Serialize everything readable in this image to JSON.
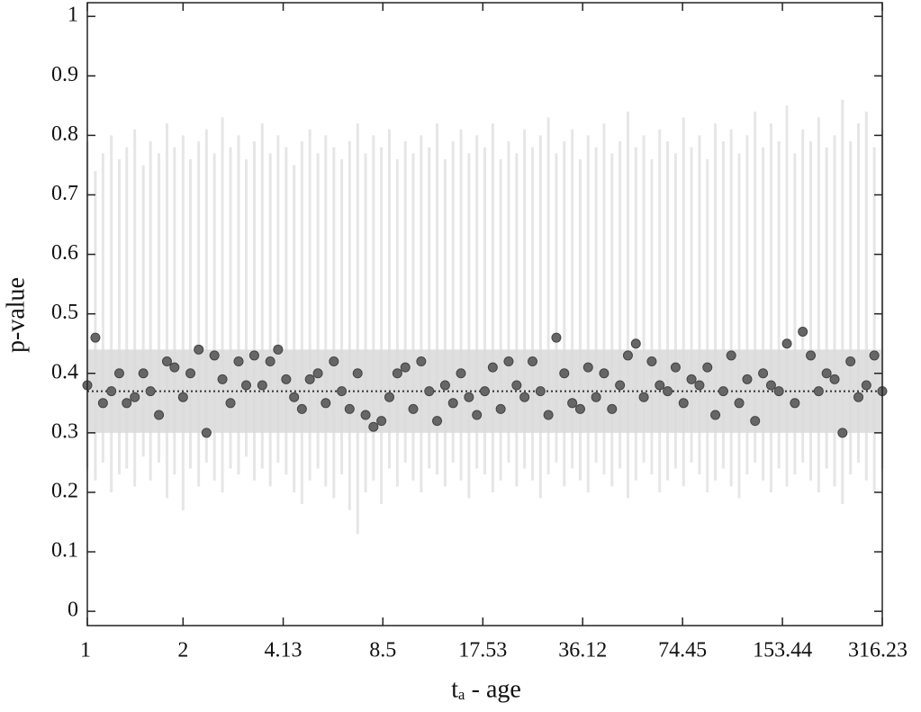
{
  "chart_data": {
    "type": "scatter",
    "x_label": "tₐ - age",
    "y_label": "p-value",
    "log_x": true,
    "xlim": [
      1,
      316.23
    ],
    "xticks": [
      1,
      2,
      4.13,
      8.5,
      17.53,
      36.12,
      74.45,
      153.44,
      316.23
    ],
    "ylim": [
      -0.024,
      1.023
    ],
    "yticks": [
      0,
      0.1,
      0.2,
      0.3,
      0.4,
      0.5,
      0.6,
      0.7,
      0.8,
      0.9,
      1
    ],
    "band": [
      0.3,
      0.44
    ],
    "band_color": "#d9d9d9",
    "mean_line": 0.37,
    "x": [
      1,
      1.06,
      1.12,
      1.19,
      1.26,
      1.33,
      1.41,
      1.5,
      1.58,
      1.68,
      1.78,
      1.88,
      2.0,
      2.11,
      2.24,
      2.37,
      2.51,
      2.66,
      2.82,
      2.99,
      3.16,
      3.35,
      3.55,
      3.76,
      3.98,
      4.22,
      4.47,
      4.73,
      5.01,
      5.31,
      5.62,
      5.96,
      6.31,
      6.68,
      7.08,
      7.5,
      7.94,
      8.41,
      8.91,
      9.44,
      10,
      10.59,
      11.22,
      11.89,
      12.59,
      13.34,
      14.13,
      14.96,
      15.85,
      16.79,
      17.78,
      18.84,
      19.95,
      21.13,
      22.39,
      23.71,
      25.12,
      26.61,
      28.18,
      29.85,
      31.62,
      33.5,
      35.48,
      37.58,
      39.81,
      42.17,
      44.67,
      47.32,
      50.12,
      53.09,
      56.23,
      59.57,
      63.1,
      66.83,
      70.79,
      74.99,
      79.43,
      84.14,
      89.13,
      94.41,
      100,
      105.9,
      112.2,
      118.9,
      125.9,
      133.4,
      141.3,
      149.6,
      158.5,
      167.9,
      177.8,
      188.4,
      199.5,
      211.3,
      223.9,
      237.1,
      251.2,
      266.1,
      281.8,
      298.5,
      316.2
    ],
    "series": [
      {
        "color": "#666666",
        "error_color": "#e6e6e6",
        "values": [
          0.38,
          0.46,
          0.35,
          0.37,
          0.4,
          0.35,
          0.36,
          0.4,
          0.37,
          0.33,
          0.42,
          0.41,
          0.36,
          0.4,
          0.44,
          0.3,
          0.43,
          0.39,
          0.35,
          0.42,
          0.38,
          0.43,
          0.38,
          0.42,
          0.44,
          0.39,
          0.36,
          0.34,
          0.39,
          0.4,
          0.35,
          0.42,
          0.37,
          0.34,
          0.4,
          0.33,
          0.31,
          0.32,
          0.36,
          0.4,
          0.41,
          0.34,
          0.42,
          0.37,
          0.32,
          0.38,
          0.35,
          0.4,
          0.36,
          0.33,
          0.37,
          0.41,
          0.34,
          0.42,
          0.38,
          0.36,
          0.42,
          0.37,
          0.33,
          0.46,
          0.4,
          0.35,
          0.34,
          0.41,
          0.36,
          0.4,
          0.34,
          0.38,
          0.43,
          0.45,
          0.36,
          0.42,
          0.38,
          0.37,
          0.41,
          0.35,
          0.39,
          0.38,
          0.41,
          0.33,
          0.37,
          0.43,
          0.35,
          0.39,
          0.32,
          0.4,
          0.38,
          0.37,
          0.45,
          0.35,
          0.47,
          0.43,
          0.37,
          0.4,
          0.39,
          0.3,
          0.42,
          0.36,
          0.38,
          0.43,
          0.37
        ],
        "lower": [
          0.24,
          0.22,
          0.25,
          0.2,
          0.23,
          0.24,
          0.21,
          0.26,
          0.22,
          0.25,
          0.19,
          0.23,
          0.17,
          0.24,
          0.21,
          0.25,
          0.22,
          0.2,
          0.24,
          0.23,
          0.26,
          0.22,
          0.24,
          0.21,
          0.25,
          0.23,
          0.2,
          0.18,
          0.22,
          0.24,
          0.21,
          0.19,
          0.23,
          0.17,
          0.13,
          0.2,
          0.22,
          0.18,
          0.24,
          0.21,
          0.25,
          0.22,
          0.2,
          0.24,
          0.23,
          0.21,
          0.25,
          0.22,
          0.19,
          0.24,
          0.23,
          0.2,
          0.22,
          0.25,
          0.21,
          0.24,
          0.22,
          0.19,
          0.23,
          0.25,
          0.21,
          0.24,
          0.22,
          0.2,
          0.25,
          0.23,
          0.21,
          0.24,
          0.19,
          0.22,
          0.25,
          0.23,
          0.2,
          0.22,
          0.24,
          0.21,
          0.25,
          0.23,
          0.2,
          0.22,
          0.24,
          0.21,
          0.19,
          0.23,
          0.25,
          0.22,
          0.2,
          0.24,
          0.21,
          0.23,
          0.25,
          0.22,
          0.2,
          0.24,
          0.21,
          0.18,
          0.23,
          0.25,
          0.22,
          0.2,
          0.24
        ],
        "upper": [
          0.79,
          0.74,
          0.77,
          0.8,
          0.76,
          0.78,
          0.81,
          0.75,
          0.79,
          0.77,
          0.82,
          0.78,
          0.8,
          0.76,
          0.79,
          0.81,
          0.77,
          0.83,
          0.78,
          0.8,
          0.76,
          0.79,
          0.82,
          0.77,
          0.8,
          0.78,
          0.75,
          0.79,
          0.81,
          0.77,
          0.8,
          0.78,
          0.76,
          0.79,
          0.82,
          0.77,
          0.8,
          0.78,
          0.81,
          0.76,
          0.79,
          0.77,
          0.8,
          0.78,
          0.82,
          0.76,
          0.79,
          0.81,
          0.77,
          0.8,
          0.78,
          0.82,
          0.76,
          0.79,
          0.77,
          0.81,
          0.78,
          0.8,
          0.83,
          0.77,
          0.79,
          0.81,
          0.76,
          0.8,
          0.78,
          0.82,
          0.77,
          0.79,
          0.84,
          0.78,
          0.8,
          0.76,
          0.81,
          0.79,
          0.77,
          0.83,
          0.78,
          0.8,
          0.76,
          0.82,
          0.79,
          0.81,
          0.77,
          0.8,
          0.84,
          0.78,
          0.82,
          0.79,
          0.85,
          0.77,
          0.81,
          0.79,
          0.83,
          0.78,
          0.8,
          0.86,
          0.79,
          0.82,
          0.84,
          0.78,
          0.81
        ]
      }
    ]
  }
}
